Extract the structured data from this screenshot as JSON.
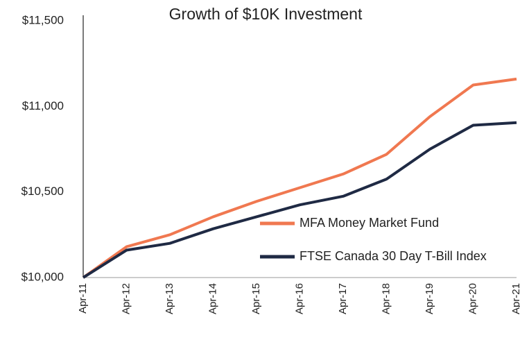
{
  "chart_data": {
    "type": "line",
    "title": "Growth of $10K Investment",
    "categories": [
      "Apr-11",
      "Apr-12",
      "Apr-13",
      "Apr-14",
      "Apr-15",
      "Apr-16",
      "Apr-17",
      "Apr-18",
      "Apr-19",
      "Apr-20",
      "Apr-21"
    ],
    "series": [
      {
        "name": "MFA Money Market Fund",
        "color": "#f07850",
        "values": [
          10000,
          10180,
          10250,
          10355,
          10445,
          10525,
          10605,
          10720,
          10940,
          11125,
          11160
        ]
      },
      {
        "name": "FTSE Canada 30 Day T-Bill Index",
        "color": "#1f2a44",
        "values": [
          10000,
          10160,
          10200,
          10285,
          10355,
          10425,
          10475,
          10575,
          10750,
          10890,
          10905
        ]
      }
    ],
    "ylim": [
      10000,
      11500
    ],
    "yticks": [
      {
        "value": 10000,
        "label": "$10,000"
      },
      {
        "value": 10500,
        "label": "$10,500"
      },
      {
        "value": 11000,
        "label": "$11,000"
      },
      {
        "value": 11500,
        "label": "$11,500"
      }
    ],
    "grid": false,
    "legend": "lower right"
  }
}
